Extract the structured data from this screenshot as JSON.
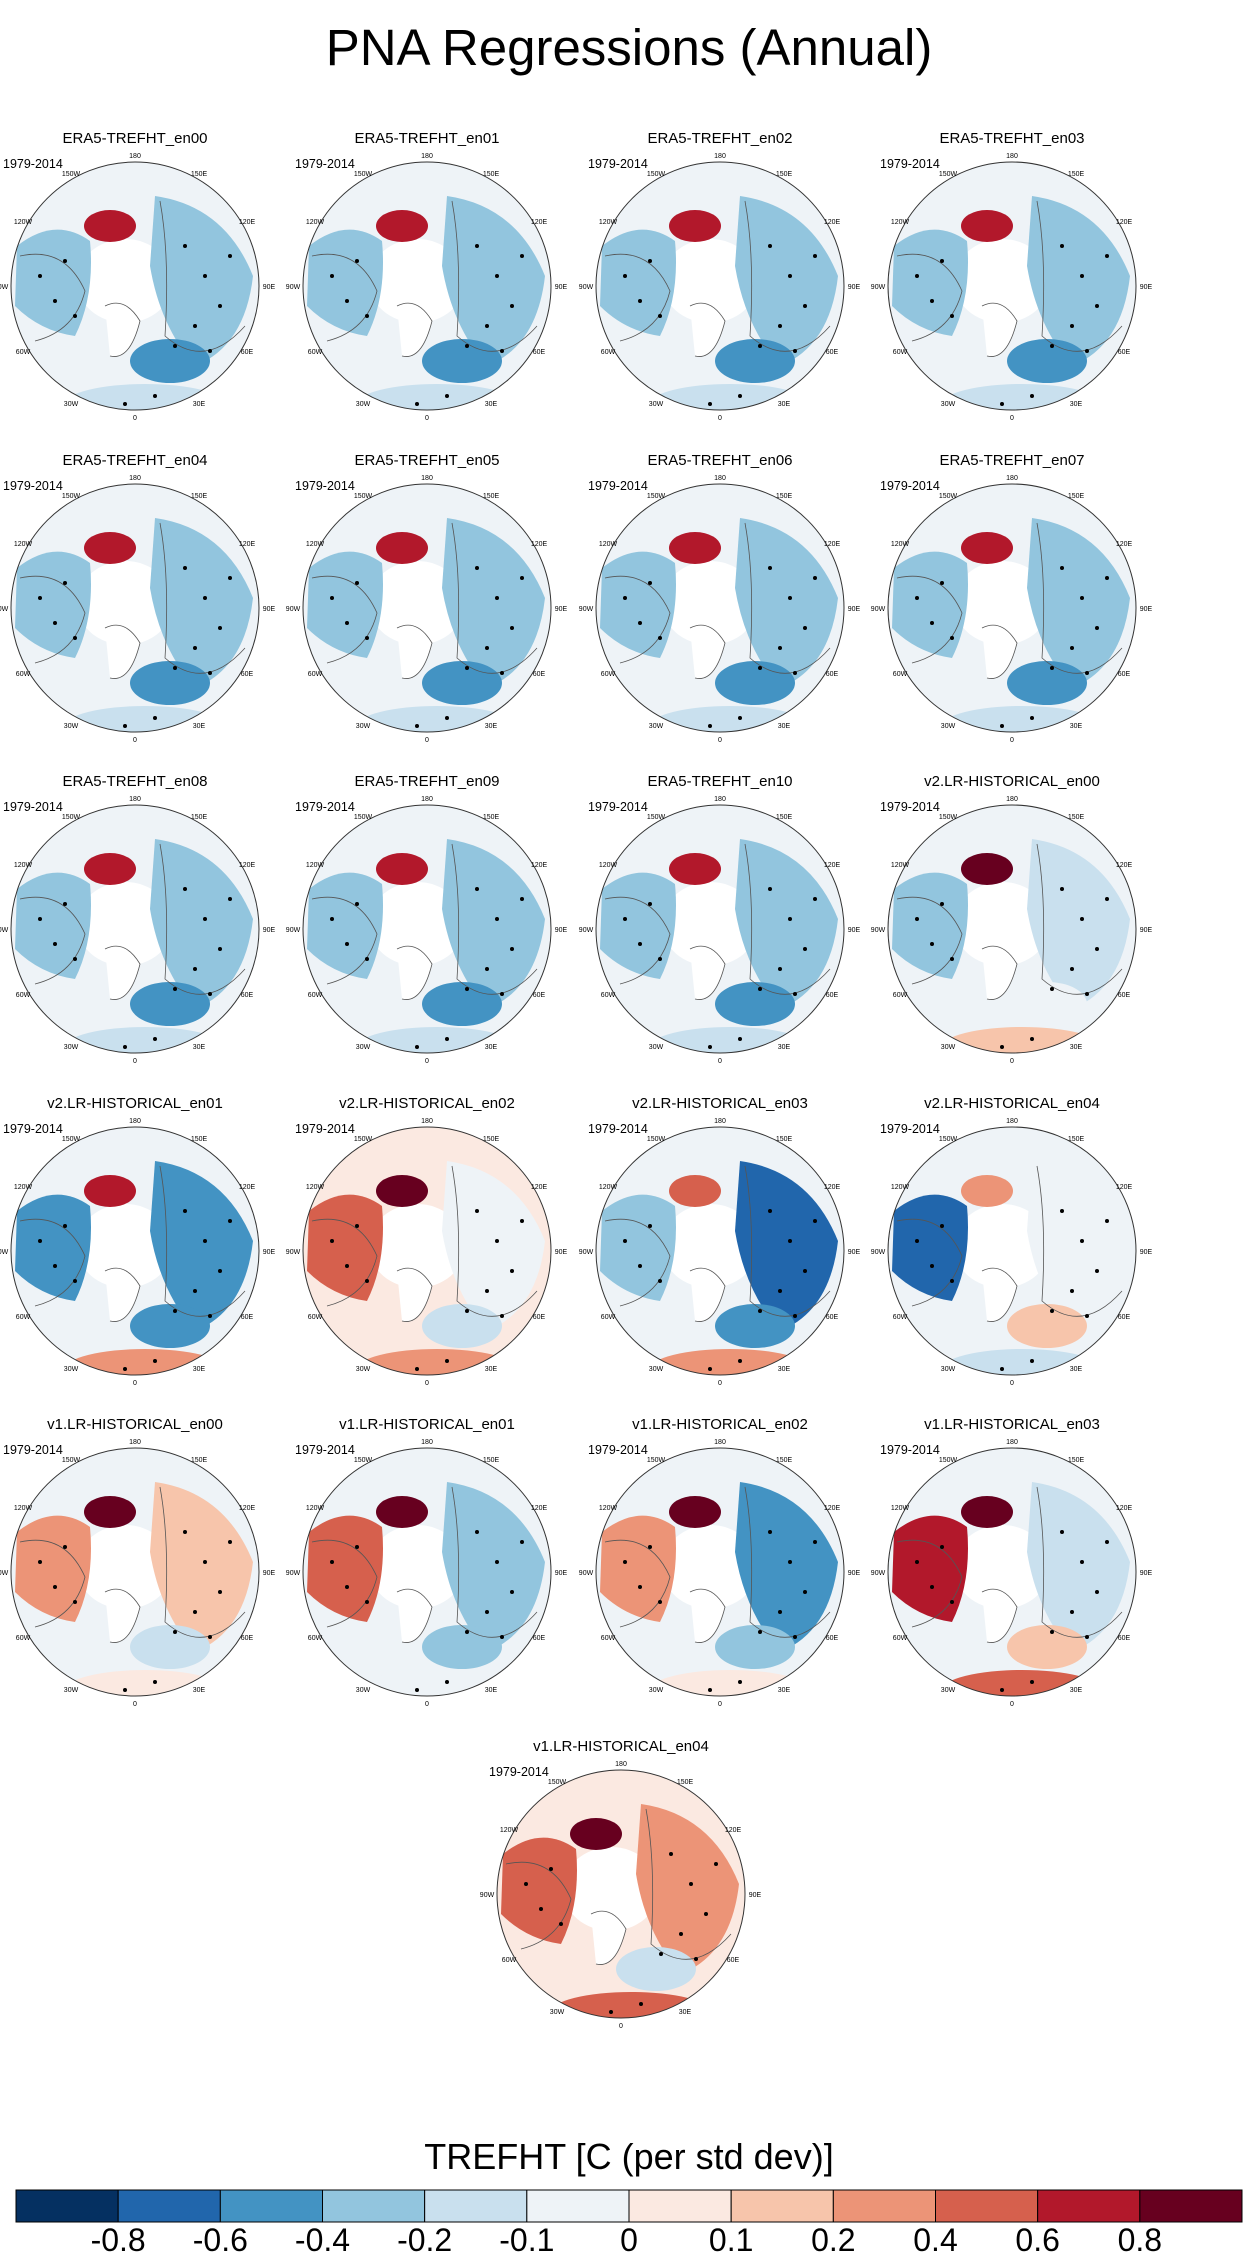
{
  "title": "PNA Regressions (Annual)",
  "period": "1979-2014",
  "panels": [
    {
      "title": "ERA5-TREFHT_en00",
      "pattern": "era5",
      "period": "1979-2014"
    },
    {
      "title": "ERA5-TREFHT_en01",
      "pattern": "era5",
      "period": "1979-2014"
    },
    {
      "title": "ERA5-TREFHT_en02",
      "pattern": "era5",
      "period": "1979-2014"
    },
    {
      "title": "ERA5-TREFHT_en03",
      "pattern": "era5",
      "period": "1979-2014"
    },
    {
      "title": "ERA5-TREFHT_en04",
      "pattern": "era5",
      "period": "1979-2014"
    },
    {
      "title": "ERA5-TREFHT_en05",
      "pattern": "era5",
      "period": "1979-2014"
    },
    {
      "title": "ERA5-TREFHT_en06",
      "pattern": "era5",
      "period": "1979-2014"
    },
    {
      "title": "ERA5-TREFHT_en07",
      "pattern": "era5",
      "period": "1979-2014"
    },
    {
      "title": "ERA5-TREFHT_en08",
      "pattern": "era5",
      "period": "1979-2014"
    },
    {
      "title": "ERA5-TREFHT_en09",
      "pattern": "era5",
      "period": "1979-2014"
    },
    {
      "title": "ERA5-TREFHT_en10",
      "pattern": "era5",
      "period": "1979-2014"
    },
    {
      "title": "v2.LR-HISTORICAL_en00",
      "pattern": "v2a",
      "period": "1979-2014"
    },
    {
      "title": "v2.LR-HISTORICAL_en01",
      "pattern": "v2b",
      "period": "1979-2014"
    },
    {
      "title": "v2.LR-HISTORICAL_en02",
      "pattern": "v2c",
      "period": "1979-2014"
    },
    {
      "title": "v2.LR-HISTORICAL_en03",
      "pattern": "v2d",
      "period": "1979-2014"
    },
    {
      "title": "v2.LR-HISTORICAL_en04",
      "pattern": "v2e",
      "period": "1979-2014"
    },
    {
      "title": "v1.LR-HISTORICAL_en00",
      "pattern": "v1a",
      "period": "1979-2014"
    },
    {
      "title": "v1.LR-HISTORICAL_en01",
      "pattern": "v1b",
      "period": "1979-2014"
    },
    {
      "title": "v1.LR-HISTORICAL_en02",
      "pattern": "v1c",
      "period": "1979-2014"
    },
    {
      "title": "v1.LR-HISTORICAL_en03",
      "pattern": "v1d",
      "period": "1979-2014"
    },
    {
      "title": "v1.LR-HISTORICAL_en04",
      "pattern": "v1e",
      "period": "1979-2014"
    }
  ],
  "map_labels": {
    "lon_top": "180",
    "lon_150W": "150W",
    "lon_150E": "150E",
    "lon_120W": "120W",
    "lon_120E": "120E",
    "lon_90W": "90W",
    "lon_90E": "90E",
    "lon_60W": "60W",
    "lon_60E": "60E",
    "lon_30W": "30W",
    "lon_30E": "30E",
    "lon_0": "0"
  },
  "colorbar": {
    "title": "TREFHT [C (per std dev)]",
    "colors": [
      "#053061",
      "#2166ac",
      "#4393c3",
      "#92c5de",
      "#c9e0ee",
      "#eef3f7",
      "#fbe9e1",
      "#f7c5ab",
      "#ec9477",
      "#d6604d",
      "#b2182b",
      "#67001f"
    ],
    "levels": [
      "-0.8",
      "-0.6",
      "-0.4",
      "-0.2",
      "-0.1",
      "0",
      "0.1",
      "0.2",
      "0.4",
      "0.6",
      "0.8"
    ]
  }
}
